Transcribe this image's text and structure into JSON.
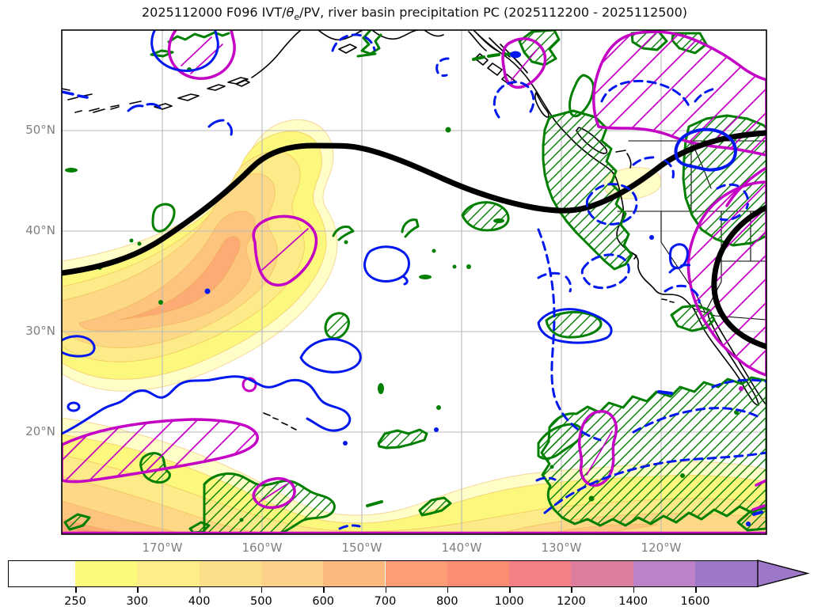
{
  "title": {
    "part1": "2025112000 F096 IVT/",
    "theta_symbol": "θ",
    "theta_subscript": "e",
    "part2": "/PV, river basin precipitation PC (2025112200 - 2025112500)"
  },
  "axes": {
    "lat_ticks": [
      "50°N",
      "40°N",
      "30°N",
      "20°N"
    ],
    "lon_ticks": [
      "170°W",
      "160°W",
      "150°W",
      "140°W",
      "130°W",
      "120°W"
    ]
  },
  "colorbar": {
    "tick_labels": [
      "250",
      "300",
      "400",
      "500",
      "600",
      "700",
      "800",
      "1000",
      "1200",
      "1400",
      "1600"
    ],
    "segment_colors": [
      "#ffffff",
      "#fbfa7d",
      "#fdee8a",
      "#fddf8b",
      "#fdd189",
      "#fdb87d",
      "#fc9d76",
      "#fc8d72",
      "#f28085",
      "#dd7e9f",
      "#bc81c6",
      "#9d78c9"
    ],
    "arrow_color": "#9d78c9"
  },
  "palette": {
    "black_contour": "#000000",
    "blue_contour": "#0018ee",
    "green_contour": "#007f00",
    "magenta_contour": "#c400c4",
    "coastline": "#000000",
    "gridline": "#b9b9b9"
  },
  "ivt": {
    "fills": [
      "#fffdc8",
      "#fcf87e",
      "#fdea89",
      "#fdd987",
      "#fdc480",
      "#fcab75",
      "#fb9470"
    ]
  },
  "chart_data": {
    "type": "heatmap",
    "subtype": "filled-contour map with overlaid line contours (North Pacific / western North America)",
    "title": "2025112000 F096 IVT/θe/PV, river basin precipitation PC (2025112200 - 2025112500)",
    "x_tick_labels": [
      "170°W",
      "160°W",
      "150°W",
      "140°W",
      "130°W",
      "120°W"
    ],
    "y_tick_labels": [
      "50°N",
      "40°N",
      "30°N",
      "20°N"
    ],
    "colorbar_levels": [
      250,
      300,
      400,
      500,
      600,
      700,
      800,
      1000,
      1200,
      1400,
      1600
    ],
    "colorbar_colors": [
      "#ffffff",
      "#fbfa7d",
      "#fdee8a",
      "#fddf8b",
      "#fdd189",
      "#fdb87d",
      "#fc9d76",
      "#fc8d72",
      "#f28085",
      "#dd7e9f",
      "#bc81c6",
      "#9d78c9"
    ],
    "colorbar_extends_right": true,
    "grid": true,
    "layers": [
      {
        "name": "IVT shaded",
        "style": "filled contours, yellow to purple, levels 250-1600+",
        "max_shaded_value_on_map": "~700 (orange cores near 165°W/35°N band and along southern edge)"
      },
      {
        "name": "theta-e/PV line",
        "style": "very thick solid black contour arching from west edge ~36°N to crest ~48°N,152°W then dipping to ~42°N,130°W toward the US coast; second C-shaped arc over southern California/Arizona"
      },
      {
        "name": "precipitation PC blue",
        "style": "medium blue contours, solid and dashed, scattered over ocean, Pacific Northwest and subtropics"
      },
      {
        "name": "precipitation PC green",
        "style": "green contours with diagonal hatching over British Columbia coast, Rockies, tropics/ITCZ band and south-central Pacific"
      },
      {
        "name": "precipitation PC magenta",
        "style": "magenta contours with wide diagonal hatching: top-left circle, Alaska panhandle loop, large region over interior BC/Alberta, box near 160°W/37°N, region over Arizona/Nevada, elongated band near 20°N west, small tropical blobs"
      },
      {
        "name": "basemap",
        "style": "thin black coastlines (Aleutians, Alaska, BC, US West Coast, Baja California) and US state borders; gray 10° graticule"
      }
    ]
  }
}
